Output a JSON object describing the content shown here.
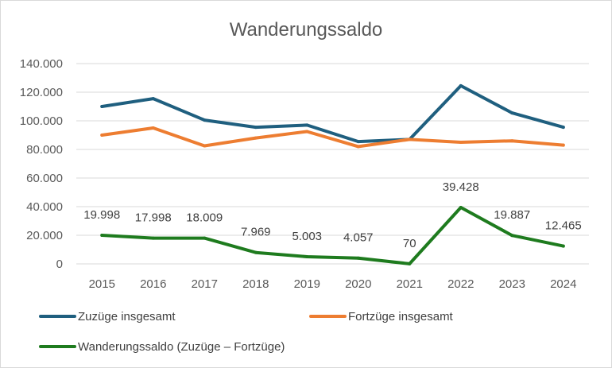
{
  "chart_data": {
    "type": "line",
    "title": "Wanderungssaldo",
    "xlabel": "",
    "ylabel": "",
    "categories": [
      "2015",
      "2016",
      "2017",
      "2018",
      "2019",
      "2020",
      "2021",
      "2022",
      "2023",
      "2024"
    ],
    "ylim": [
      0,
      140000
    ],
    "y_ticks": [
      0,
      20000,
      40000,
      60000,
      80000,
      100000,
      120000,
      140000
    ],
    "y_tick_labels": [
      "0",
      "20.000",
      "40.000",
      "60.000",
      "80.000",
      "100.000",
      "120.000",
      "140.000"
    ],
    "grid": true,
    "legend_position": "bottom",
    "series": [
      {
        "name": "Zuzüge insgesamt",
        "color": "#1f5f7f",
        "values": [
          110000,
          115500,
          100500,
          95500,
          97000,
          85500,
          87000,
          124500,
          105500,
          95500
        ]
      },
      {
        "name": "Fortzüge insgesamt",
        "color": "#ed7d31",
        "values": [
          90000,
          95000,
          82500,
          88000,
          92500,
          82000,
          87000,
          85000,
          86000,
          83000
        ]
      },
      {
        "name": "Wanderungssaldo (Zuzüge – Fortzüge)",
        "color": "#1e7b1e",
        "values": [
          19998,
          17998,
          18009,
          7969,
          5003,
          4057,
          70,
          39428,
          19887,
          12465
        ],
        "data_labels": [
          "19.998",
          "17.998",
          "18.009",
          "7.969",
          "5.003",
          "4.057",
          "70",
          "39.428",
          "19.887",
          "12.465"
        ]
      }
    ]
  }
}
